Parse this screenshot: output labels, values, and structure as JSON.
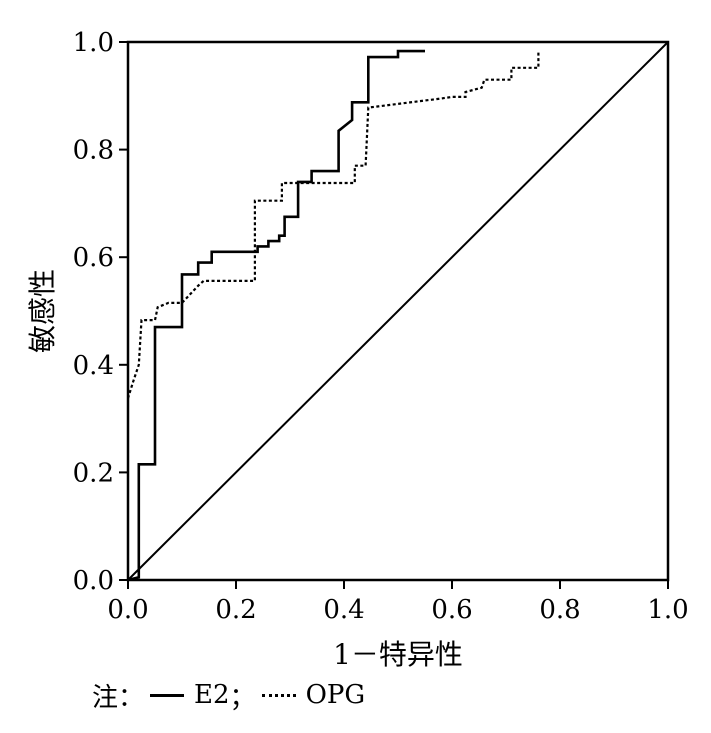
{
  "chart_data": {
    "type": "line",
    "xlabel": "1－特异性",
    "ylabel": "敏感性",
    "xlim": [
      0,
      1
    ],
    "ylim": [
      0,
      1
    ],
    "x_ticks": [
      "0.0",
      "0.2",
      "0.4",
      "0.6",
      "0.8",
      "1.0"
    ],
    "y_ticks": [
      "0.0",
      "0.2",
      "0.4",
      "0.6",
      "0.8",
      "1.0"
    ],
    "grid": false,
    "reference_line": [
      [
        0,
        0
      ],
      [
        1,
        1
      ]
    ],
    "series": [
      {
        "name": "E2",
        "style": "solid",
        "x": [
          0,
          0.02,
          0.02,
          0.025,
          0.025,
          0.05,
          0.05,
          0.1,
          0.1,
          0.13,
          0.13,
          0.155,
          0.155,
          0.24,
          0.24,
          0.26,
          0.26,
          0.28,
          0.28,
          0.29,
          0.29,
          0.315,
          0.315,
          0.34,
          0.34,
          0.39,
          0.39,
          0.415,
          0.415,
          0.445,
          0.445,
          0.5,
          0.5,
          0.55
        ],
        "y": [
          0,
          0.005,
          0.215,
          0.215,
          0.215,
          0.215,
          0.47,
          0.47,
          0.568,
          0.568,
          0.59,
          0.59,
          0.61,
          0.61,
          0.62,
          0.62,
          0.63,
          0.63,
          0.64,
          0.64,
          0.675,
          0.675,
          0.74,
          0.74,
          0.76,
          0.76,
          0.835,
          0.855,
          0.888,
          0.888,
          0.972,
          0.972,
          0.983,
          0.983
        ]
      },
      {
        "name": "OPG",
        "style": "dashed",
        "x": [
          0,
          0.01,
          0.02,
          0.025,
          0.025,
          0.05,
          0.055,
          0.075,
          0.1,
          0.13,
          0.14,
          0.235,
          0.235,
          0.285,
          0.285,
          0.32,
          0.32,
          0.42,
          0.42,
          0.44,
          0.445,
          0.58,
          0.6,
          0.625,
          0.625,
          0.655,
          0.66,
          0.69,
          0.71,
          0.71,
          0.76,
          0.76
        ],
        "y": [
          0.338,
          0.37,
          0.4,
          0.483,
          0.483,
          0.483,
          0.507,
          0.515,
          0.515,
          0.547,
          0.556,
          0.556,
          0.705,
          0.705,
          0.738,
          0.738,
          0.738,
          0.738,
          0.77,
          0.77,
          0.878,
          0.895,
          0.898,
          0.898,
          0.907,
          0.915,
          0.93,
          0.93,
          0.93,
          0.952,
          0.952,
          0.983
        ]
      }
    ],
    "note_prefix": "注：",
    "legend_sep": "；"
  }
}
